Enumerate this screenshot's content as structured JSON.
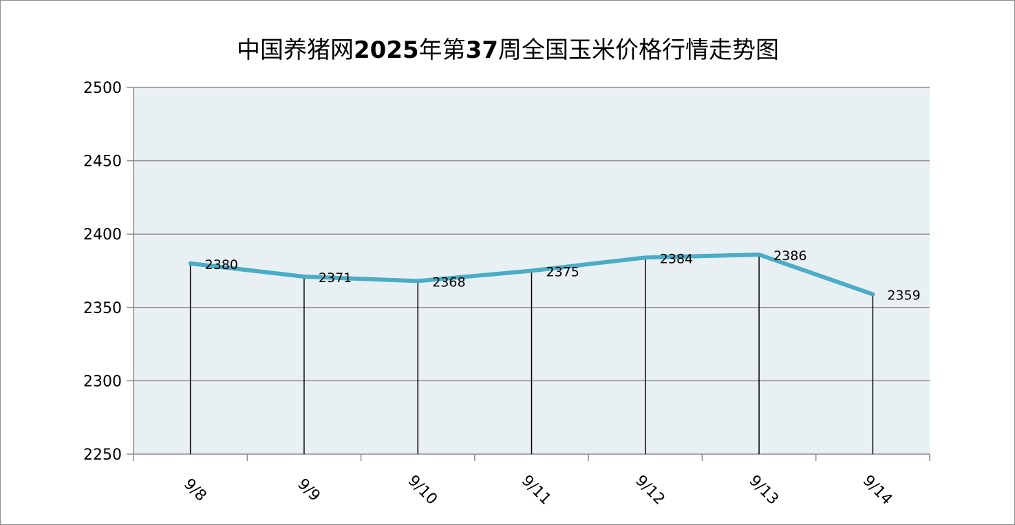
{
  "chart_data": {
    "type": "line",
    "title_parts": [
      {
        "text": "中国养猪网",
        "bold": false
      },
      {
        "text": "2025",
        "bold": true
      },
      {
        "text": "年第",
        "bold": false
      },
      {
        "text": "37",
        "bold": true
      },
      {
        "text": "周全国玉米价格行情走势图",
        "bold": false
      }
    ],
    "categories": [
      "9/8",
      "9/9",
      "9/10",
      "9/11",
      "9/12",
      "9/13",
      "9/14"
    ],
    "series": [
      {
        "values": [
          2380,
          2371,
          2368,
          2375,
          2384,
          2386,
          2359
        ],
        "color": "#4bacc6"
      }
    ],
    "ylim": [
      2250,
      2500
    ],
    "yticks": [
      2250,
      2300,
      2350,
      2400,
      2450,
      2500
    ],
    "grid": true,
    "drop_lines": true,
    "legend": "none",
    "plot_background": "#e8f0f3",
    "gridline_color": "#8c8c8c"
  }
}
